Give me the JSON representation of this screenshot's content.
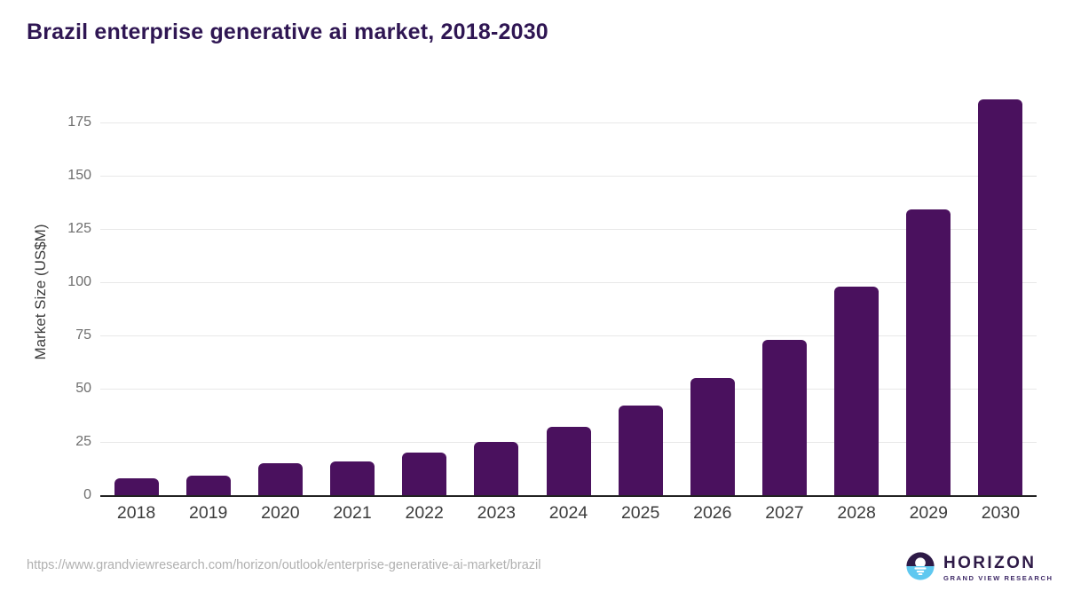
{
  "chart_data": {
    "type": "bar",
    "title": "Brazil enterprise generative ai market, 2018-2030",
    "categories": [
      "2018",
      "2019",
      "2020",
      "2021",
      "2022",
      "2023",
      "2024",
      "2025",
      "2026",
      "2027",
      "2028",
      "2029",
      "2030"
    ],
    "values": [
      8,
      9,
      15,
      16,
      20,
      25,
      32,
      42,
      55,
      73,
      98,
      134,
      186
    ],
    "xlabel": "",
    "ylabel": "Market Size (US$M)",
    "y_ticks": [
      0,
      25,
      50,
      75,
      100,
      125,
      150,
      175
    ],
    "ylim": [
      0,
      191
    ],
    "grid": "horizontal-only",
    "legend": "none"
  },
  "footer": {
    "url": "https://www.grandviewresearch.com/horizon/outlook/enterprise-generative-ai-market/brazil"
  },
  "logo": {
    "brand": "HORIZON",
    "tagline": "GRAND VIEW RESEARCH"
  },
  "colors": {
    "bar": "#4a115e",
    "title": "#2f1653",
    "axis_line": "#222222",
    "gridline": "#e8e8e8",
    "y_tick_label": "#6e6e6e",
    "x_tick_label": "#3c3c3c",
    "url_text": "#b0b0b0",
    "logo_purple": "#2e1a47",
    "logo_blue": "#5fc8f0"
  }
}
